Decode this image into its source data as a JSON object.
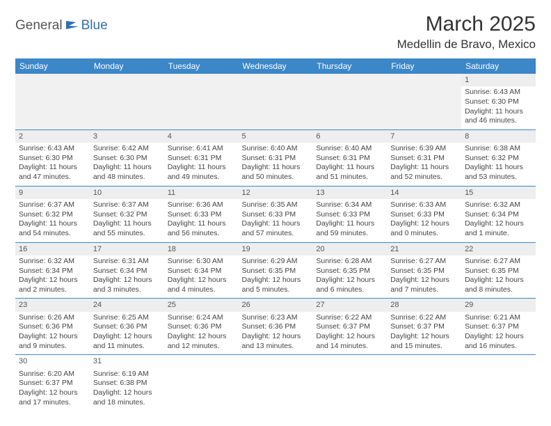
{
  "logo": {
    "text1": "General",
    "text2": "Blue"
  },
  "title": "March 2025",
  "location": "Medellin de Bravo, Mexico",
  "colors": {
    "header_bg": "#3b87c8",
    "header_fg": "#ffffff",
    "row_border": "#3b87c8",
    "daynum_bg": "#eeeeee",
    "empty_bg": "#f1f1f1",
    "logo_accent": "#2f6fb0"
  },
  "weekdays": [
    "Sunday",
    "Monday",
    "Tuesday",
    "Wednesday",
    "Thursday",
    "Friday",
    "Saturday"
  ],
  "weeks": [
    [
      null,
      null,
      null,
      null,
      null,
      null,
      {
        "n": "1",
        "sr": "Sunrise: 6:43 AM",
        "ss": "Sunset: 6:30 PM",
        "dl": "Daylight: 11 hours and 46 minutes."
      }
    ],
    [
      {
        "n": "2",
        "sr": "Sunrise: 6:43 AM",
        "ss": "Sunset: 6:30 PM",
        "dl": "Daylight: 11 hours and 47 minutes."
      },
      {
        "n": "3",
        "sr": "Sunrise: 6:42 AM",
        "ss": "Sunset: 6:30 PM",
        "dl": "Daylight: 11 hours and 48 minutes."
      },
      {
        "n": "4",
        "sr": "Sunrise: 6:41 AM",
        "ss": "Sunset: 6:31 PM",
        "dl": "Daylight: 11 hours and 49 minutes."
      },
      {
        "n": "5",
        "sr": "Sunrise: 6:40 AM",
        "ss": "Sunset: 6:31 PM",
        "dl": "Daylight: 11 hours and 50 minutes."
      },
      {
        "n": "6",
        "sr": "Sunrise: 6:40 AM",
        "ss": "Sunset: 6:31 PM",
        "dl": "Daylight: 11 hours and 51 minutes."
      },
      {
        "n": "7",
        "sr": "Sunrise: 6:39 AM",
        "ss": "Sunset: 6:31 PM",
        "dl": "Daylight: 11 hours and 52 minutes."
      },
      {
        "n": "8",
        "sr": "Sunrise: 6:38 AM",
        "ss": "Sunset: 6:32 PM",
        "dl": "Daylight: 11 hours and 53 minutes."
      }
    ],
    [
      {
        "n": "9",
        "sr": "Sunrise: 6:37 AM",
        "ss": "Sunset: 6:32 PM",
        "dl": "Daylight: 11 hours and 54 minutes."
      },
      {
        "n": "10",
        "sr": "Sunrise: 6:37 AM",
        "ss": "Sunset: 6:32 PM",
        "dl": "Daylight: 11 hours and 55 minutes."
      },
      {
        "n": "11",
        "sr": "Sunrise: 6:36 AM",
        "ss": "Sunset: 6:33 PM",
        "dl": "Daylight: 11 hours and 56 minutes."
      },
      {
        "n": "12",
        "sr": "Sunrise: 6:35 AM",
        "ss": "Sunset: 6:33 PM",
        "dl": "Daylight: 11 hours and 57 minutes."
      },
      {
        "n": "13",
        "sr": "Sunrise: 6:34 AM",
        "ss": "Sunset: 6:33 PM",
        "dl": "Daylight: 11 hours and 59 minutes."
      },
      {
        "n": "14",
        "sr": "Sunrise: 6:33 AM",
        "ss": "Sunset: 6:33 PM",
        "dl": "Daylight: 12 hours and 0 minutes."
      },
      {
        "n": "15",
        "sr": "Sunrise: 6:32 AM",
        "ss": "Sunset: 6:34 PM",
        "dl": "Daylight: 12 hours and 1 minute."
      }
    ],
    [
      {
        "n": "16",
        "sr": "Sunrise: 6:32 AM",
        "ss": "Sunset: 6:34 PM",
        "dl": "Daylight: 12 hours and 2 minutes."
      },
      {
        "n": "17",
        "sr": "Sunrise: 6:31 AM",
        "ss": "Sunset: 6:34 PM",
        "dl": "Daylight: 12 hours and 3 minutes."
      },
      {
        "n": "18",
        "sr": "Sunrise: 6:30 AM",
        "ss": "Sunset: 6:34 PM",
        "dl": "Daylight: 12 hours and 4 minutes."
      },
      {
        "n": "19",
        "sr": "Sunrise: 6:29 AM",
        "ss": "Sunset: 6:35 PM",
        "dl": "Daylight: 12 hours and 5 minutes."
      },
      {
        "n": "20",
        "sr": "Sunrise: 6:28 AM",
        "ss": "Sunset: 6:35 PM",
        "dl": "Daylight: 12 hours and 6 minutes."
      },
      {
        "n": "21",
        "sr": "Sunrise: 6:27 AM",
        "ss": "Sunset: 6:35 PM",
        "dl": "Daylight: 12 hours and 7 minutes."
      },
      {
        "n": "22",
        "sr": "Sunrise: 6:27 AM",
        "ss": "Sunset: 6:35 PM",
        "dl": "Daylight: 12 hours and 8 minutes."
      }
    ],
    [
      {
        "n": "23",
        "sr": "Sunrise: 6:26 AM",
        "ss": "Sunset: 6:36 PM",
        "dl": "Daylight: 12 hours and 9 minutes."
      },
      {
        "n": "24",
        "sr": "Sunrise: 6:25 AM",
        "ss": "Sunset: 6:36 PM",
        "dl": "Daylight: 12 hours and 11 minutes."
      },
      {
        "n": "25",
        "sr": "Sunrise: 6:24 AM",
        "ss": "Sunset: 6:36 PM",
        "dl": "Daylight: 12 hours and 12 minutes."
      },
      {
        "n": "26",
        "sr": "Sunrise: 6:23 AM",
        "ss": "Sunset: 6:36 PM",
        "dl": "Daylight: 12 hours and 13 minutes."
      },
      {
        "n": "27",
        "sr": "Sunrise: 6:22 AM",
        "ss": "Sunset: 6:37 PM",
        "dl": "Daylight: 12 hours and 14 minutes."
      },
      {
        "n": "28",
        "sr": "Sunrise: 6:22 AM",
        "ss": "Sunset: 6:37 PM",
        "dl": "Daylight: 12 hours and 15 minutes."
      },
      {
        "n": "29",
        "sr": "Sunrise: 6:21 AM",
        "ss": "Sunset: 6:37 PM",
        "dl": "Daylight: 12 hours and 16 minutes."
      }
    ],
    [
      {
        "n": "30",
        "sr": "Sunrise: 6:20 AM",
        "ss": "Sunset: 6:37 PM",
        "dl": "Daylight: 12 hours and 17 minutes."
      },
      {
        "n": "31",
        "sr": "Sunrise: 6:19 AM",
        "ss": "Sunset: 6:38 PM",
        "dl": "Daylight: 12 hours and 18 minutes."
      },
      null,
      null,
      null,
      null,
      null
    ]
  ]
}
